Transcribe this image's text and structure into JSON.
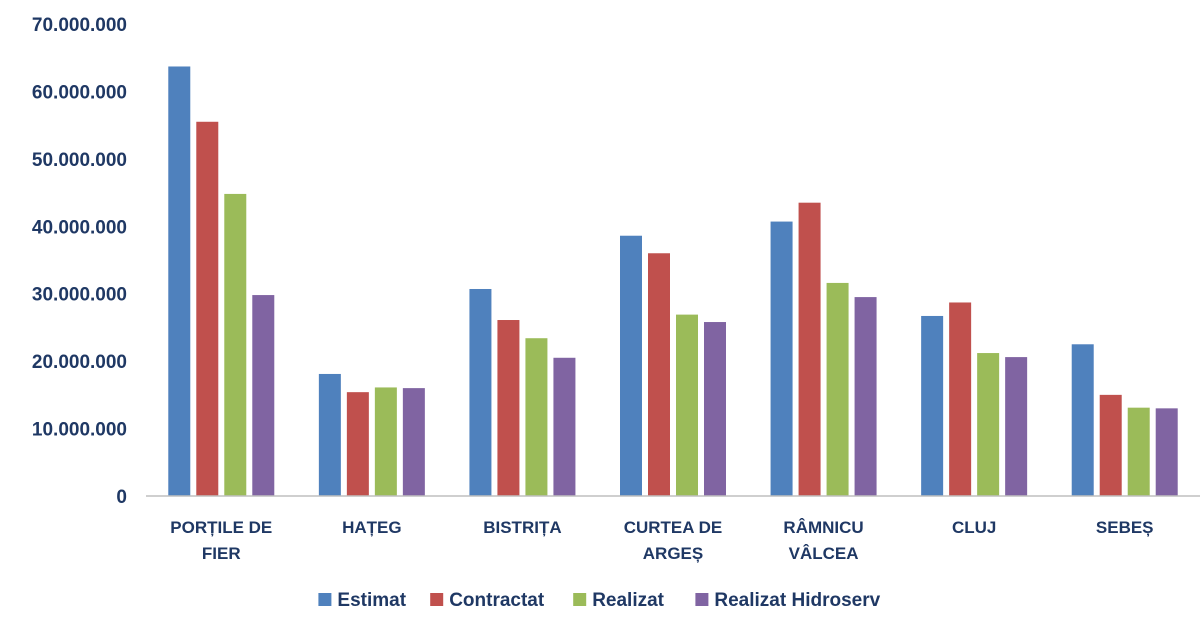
{
  "chart_data": {
    "type": "bar",
    "categories": [
      [
        "PORȚILE DE",
        "FIER"
      ],
      [
        "HAȚEG"
      ],
      [
        "BISTRIȚA"
      ],
      [
        "CURTEA DE",
        "ARGEȘ"
      ],
      [
        "RÂMNICU",
        "VÂLCEA"
      ],
      [
        "CLUJ"
      ],
      [
        "SEBEȘ"
      ]
    ],
    "series": [
      {
        "name": "Estimat",
        "color": "#4f81bd",
        "values": [
          63700000,
          18100000,
          30700000,
          38600000,
          40700000,
          26700000,
          22500000
        ]
      },
      {
        "name": "Contractat",
        "color": "#c0504d",
        "values": [
          55500000,
          15400000,
          26100000,
          36000000,
          43500000,
          28700000,
          15000000
        ]
      },
      {
        "name": "Realizat",
        "color": "#9bbb59",
        "values": [
          44800000,
          16100000,
          23400000,
          26900000,
          31600000,
          21200000,
          13100000
        ]
      },
      {
        "name": "Realizat Hidroserv",
        "color": "#8064a2",
        "values": [
          29800000,
          16000000,
          20500000,
          25800000,
          29500000,
          20600000,
          13000000
        ]
      }
    ],
    "y_ticks": [
      "0",
      "10.000.000",
      "20.000.000",
      "30.000.000",
      "40.000.000",
      "50.000.000",
      "60.000.000",
      "70.000.000"
    ],
    "ylim": [
      0,
      70000000
    ],
    "y_tick_step": 10000000,
    "grid": false,
    "legend_position": "bottom",
    "axis_text_color": "#1f3864",
    "axis_line_color": "#bfbfbf"
  }
}
